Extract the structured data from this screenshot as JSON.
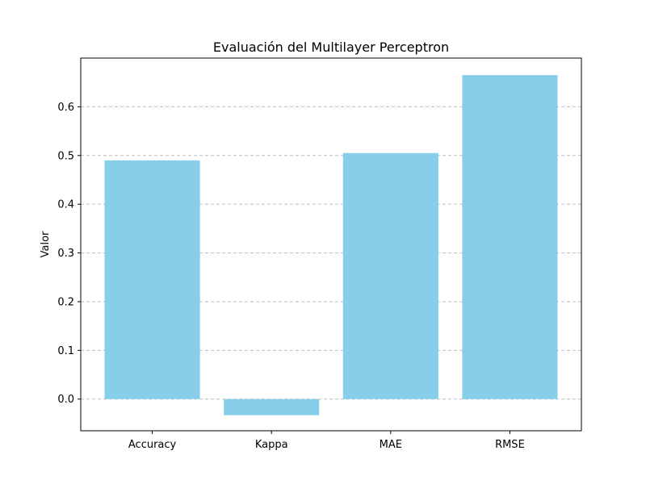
{
  "chart_data": {
    "type": "bar",
    "title": "Evaluación del Multilayer Perceptron",
    "xlabel": "",
    "ylabel": "Valor",
    "categories": [
      "Accuracy",
      "Kappa",
      "MAE",
      "RMSE"
    ],
    "values": [
      0.49,
      -0.033,
      0.505,
      0.665
    ],
    "ylim": [
      -0.065,
      0.7
    ],
    "yticks": [
      0.0,
      0.1,
      0.2,
      0.3,
      0.4,
      0.5,
      0.6
    ],
    "ytick_labels": [
      "0.0",
      "0.1",
      "0.2",
      "0.3",
      "0.4",
      "0.5",
      "0.6"
    ],
    "bar_color": "#87ceeb",
    "grid": {
      "axis": "y",
      "style": "dashed",
      "color": "#b0b0b0"
    }
  }
}
